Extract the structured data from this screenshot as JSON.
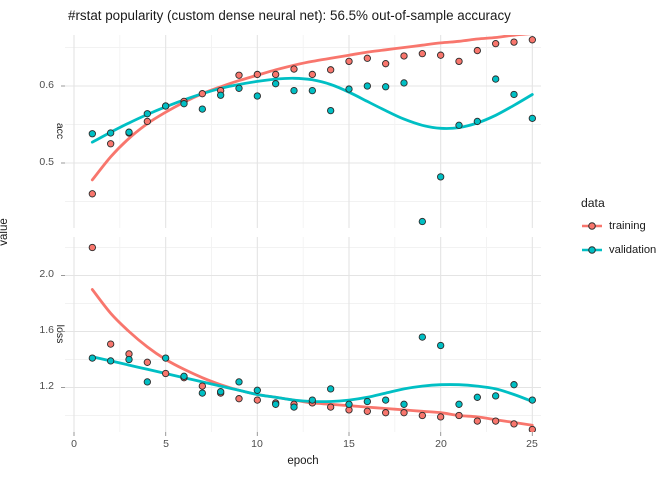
{
  "title": "#rstat popularity (custom dense neural net): 56.5% out-of-sample accuracy",
  "axes": {
    "x_title": "epoch",
    "y_title": "value",
    "x_tick_labels": [
      "0",
      "5",
      "10",
      "15",
      "20",
      "25"
    ],
    "acc_tick_labels": [
      "0.6",
      "0.5"
    ],
    "loss_tick_labels": [
      "2.0",
      "1.6",
      "1.2"
    ]
  },
  "facet_labels": {
    "acc": "acc",
    "loss": "loss"
  },
  "legend": {
    "title": "data",
    "items": [
      {
        "label": "training",
        "color": "#F8766D"
      },
      {
        "label": "validation",
        "color": "#00BFC4"
      }
    ]
  },
  "colors": {
    "training": "#F8766D",
    "validation": "#00BFC4",
    "point_stroke": "#2b2b2b",
    "grid_major": "#e4e4e4",
    "grid_minor": "#f2f2f2",
    "tick_mark": "#999999"
  },
  "chart_data": {
    "type": "scatter",
    "title": "#rstat popularity (custom dense neural net): 56.5% out-of-sample accuracy",
    "xlabel": "epoch",
    "ylabel": "value",
    "xlim": [
      0,
      25.5
    ],
    "xticks": [
      0,
      5,
      10,
      15,
      20,
      25
    ],
    "xticks_minor": [
      2.5,
      7.5,
      12.5,
      17.5,
      22.5
    ],
    "legend_position": "right",
    "grid": true,
    "epochs": [
      1,
      2,
      3,
      4,
      5,
      6,
      7,
      8,
      9,
      10,
      11,
      12,
      13,
      14,
      15,
      16,
      17,
      18,
      19,
      20,
      21,
      22,
      23,
      24,
      25
    ],
    "facets": [
      {
        "name": "acc",
        "ylim": [
          0.416,
          0.666
        ],
        "yticks": [
          0.5,
          0.6
        ],
        "yticks_minor": [
          0.45,
          0.55,
          0.65
        ],
        "series": [
          {
            "name": "training",
            "points": [
              0.46,
              0.525,
              0.539,
              0.554,
              0.574,
              0.58,
              0.59,
              0.594,
              0.614,
              0.615,
              0.615,
              0.622,
              0.615,
              0.621,
              0.632,
              0.636,
              0.629,
              0.639,
              0.642,
              0.64,
              0.632,
              0.646,
              0.655,
              0.657,
              0.66
            ],
            "smooth": [
              0.478,
              0.508,
              0.532,
              0.551,
              0.566,
              0.579,
              0.59,
              0.599,
              0.607,
              0.614,
              0.621,
              0.627,
              0.632,
              0.636,
              0.64,
              0.644,
              0.647,
              0.65,
              0.653,
              0.656,
              0.658,
              0.661,
              0.663,
              0.666,
              0.668
            ]
          },
          {
            "name": "validation",
            "points": [
              0.538,
              0.539,
              0.54,
              0.564,
              0.574,
              0.577,
              0.57,
              0.588,
              0.597,
              0.587,
              0.603,
              0.594,
              0.594,
              0.568,
              0.596,
              0.6,
              0.599,
              0.604,
              0.424,
              0.482,
              0.549,
              0.554,
              0.609,
              0.589,
              0.558
            ],
            "smooth": [
              0.527,
              0.54,
              0.552,
              0.563,
              0.573,
              0.582,
              0.59,
              0.597,
              0.602,
              0.606,
              0.609,
              0.61,
              0.608,
              0.602,
              0.592,
              0.58,
              0.568,
              0.557,
              0.549,
              0.545,
              0.546,
              0.552,
              0.562,
              0.575,
              0.589
            ]
          }
        ]
      },
      {
        "name": "loss",
        "ylim": [
          0.882,
          2.275
        ],
        "yticks": [
          1.2,
          1.6,
          2.0
        ],
        "yticks_minor": [
          1.0,
          1.4,
          1.8,
          2.2
        ],
        "series": [
          {
            "name": "training",
            "points": [
              2.2,
              1.51,
              1.44,
              1.38,
              1.3,
              1.27,
              1.21,
              1.16,
              1.12,
              1.11,
              1.09,
              1.08,
              1.09,
              1.06,
              1.04,
              1.03,
              1.02,
              1.02,
              1.0,
              0.99,
              1.0,
              0.96,
              0.96,
              0.94,
              0.9
            ],
            "smooth": [
              1.9,
              1.73,
              1.6,
              1.49,
              1.4,
              1.33,
              1.27,
              1.22,
              1.18,
              1.15,
              1.13,
              1.11,
              1.09,
              1.08,
              1.07,
              1.06,
              1.05,
              1.04,
              1.03,
              1.02,
              1.0,
              0.99,
              0.97,
              0.95,
              0.93
            ]
          },
          {
            "name": "validation",
            "points": [
              1.41,
              1.39,
              1.4,
              1.24,
              1.41,
              1.28,
              1.16,
              1.17,
              1.24,
              1.18,
              1.08,
              1.06,
              1.11,
              1.19,
              1.08,
              1.1,
              1.11,
              1.08,
              1.56,
              1.5,
              1.08,
              1.13,
              1.14,
              1.22,
              1.11
            ],
            "smooth": [
              1.42,
              1.39,
              1.36,
              1.33,
              1.3,
              1.27,
              1.24,
              1.21,
              1.18,
              1.15,
              1.13,
              1.11,
              1.1,
              1.1,
              1.11,
              1.13,
              1.16,
              1.19,
              1.21,
              1.22,
              1.22,
              1.21,
              1.19,
              1.15,
              1.1
            ]
          }
        ]
      }
    ]
  }
}
